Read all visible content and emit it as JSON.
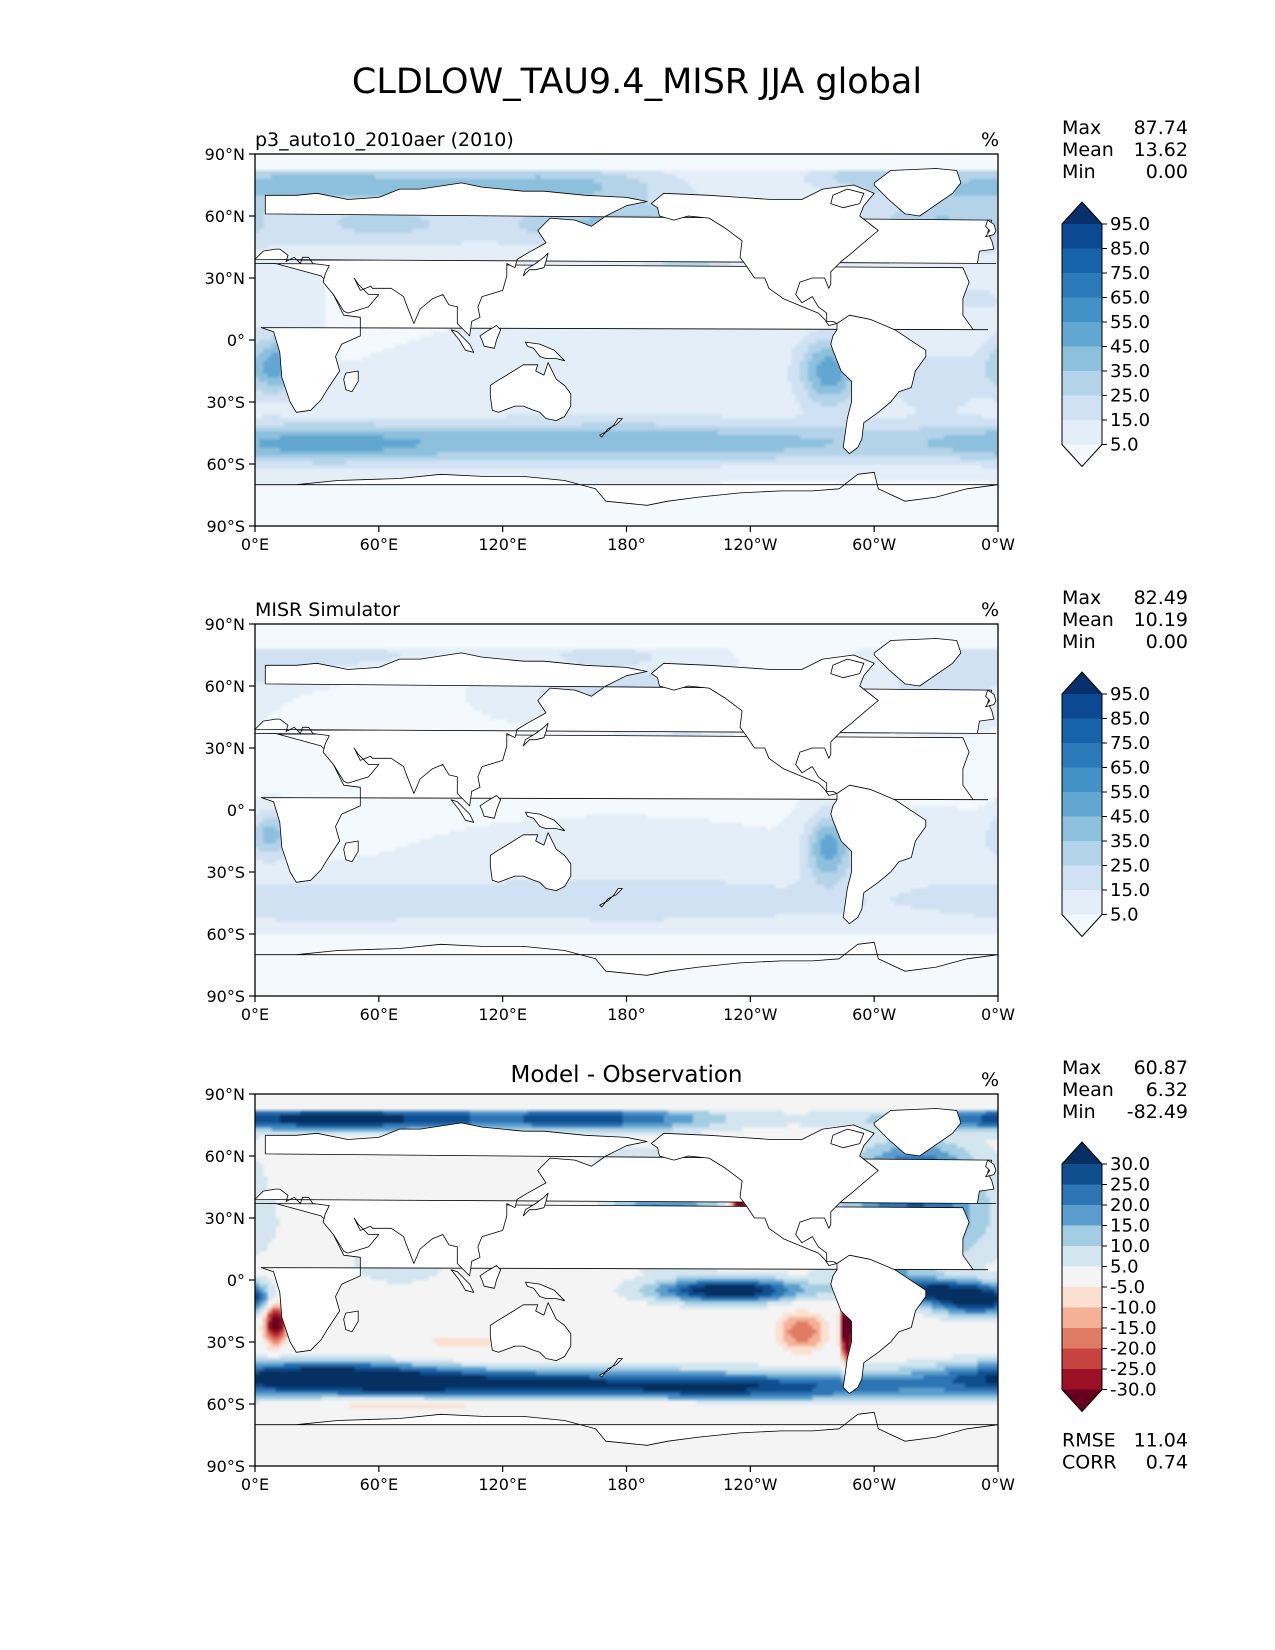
{
  "chart_data": {
    "type": "heatmap",
    "title": "CLDLOW_TAU9.4_MISR JJA global",
    "x_tick_labels": [
      "0°E",
      "60°E",
      "120°E",
      "180°",
      "120°W",
      "60°W",
      "0°W"
    ],
    "y_tick_labels": [
      "90°N",
      "60°N",
      "30°N",
      "0°",
      "30°S",
      "60°S",
      "90°S"
    ],
    "xlim": [
      0,
      360
    ],
    "ylim": [
      -90,
      90
    ],
    "panels": [
      {
        "id": "model",
        "title_left": "p3_auto10_2010aer (2010)",
        "title_center": "",
        "units": "%",
        "stats": [
          {
            "label": "Max",
            "value": "87.74"
          },
          {
            "label": "Mean",
            "value": "13.62"
          },
          {
            "label": "Min",
            "value": "0.00"
          }
        ],
        "colorbar_levels": [
          "95.0",
          "85.0",
          "75.0",
          "65.0",
          "55.0",
          "45.0",
          "35.0",
          "25.0",
          "15.0",
          "5.0"
        ],
        "colormap": [
          "#08306b",
          "#0b4a92",
          "#1764ab",
          "#2b7bba",
          "#4392c6",
          "#62a7d2",
          "#8cc0dd",
          "#b3d3e8",
          "#cfe1f2",
          "#e3eef8",
          "#f4f9fe"
        ],
        "extra_stats": []
      },
      {
        "id": "obs",
        "title_left": "MISR Simulator",
        "title_center": "",
        "units": "%",
        "stats": [
          {
            "label": "Max",
            "value": "82.49"
          },
          {
            "label": "Mean",
            "value": "10.19"
          },
          {
            "label": "Min",
            "value": "0.00"
          }
        ],
        "colorbar_levels": [
          "95.0",
          "85.0",
          "75.0",
          "65.0",
          "55.0",
          "45.0",
          "35.0",
          "25.0",
          "15.0",
          "5.0"
        ],
        "colormap": [
          "#08306b",
          "#0b4a92",
          "#1764ab",
          "#2b7bba",
          "#4392c6",
          "#62a7d2",
          "#8cc0dd",
          "#b3d3e8",
          "#cfe1f2",
          "#e3eef8",
          "#f4f9fe"
        ],
        "extra_stats": []
      },
      {
        "id": "diff",
        "title_left": "",
        "title_center": "Model - Observation",
        "units": "%",
        "stats": [
          {
            "label": "Max",
            "value": "60.87"
          },
          {
            "label": "Mean",
            "value": "6.32"
          },
          {
            "label": "Min",
            "value": "-82.49"
          }
        ],
        "colorbar_levels": [
          "30.0",
          "25.0",
          "20.0",
          "15.0",
          "10.0",
          "5.0",
          "-5.0",
          "-10.0",
          "-15.0",
          "-20.0",
          "-25.0",
          "-30.0"
        ],
        "colormap": [
          "#053061",
          "#0f4f8f",
          "#2e75b5",
          "#5b9ecd",
          "#a3cde3",
          "#d3e6f0",
          "#f4f4f4",
          "#fbe0d2",
          "#f4b196",
          "#e07b66",
          "#c6433f",
          "#9b1025",
          "#67001f"
        ],
        "extra_stats": [
          {
            "label": "RMSE",
            "value": "11.04"
          },
          {
            "label": "CORR",
            "value": "0.74"
          }
        ]
      }
    ]
  }
}
